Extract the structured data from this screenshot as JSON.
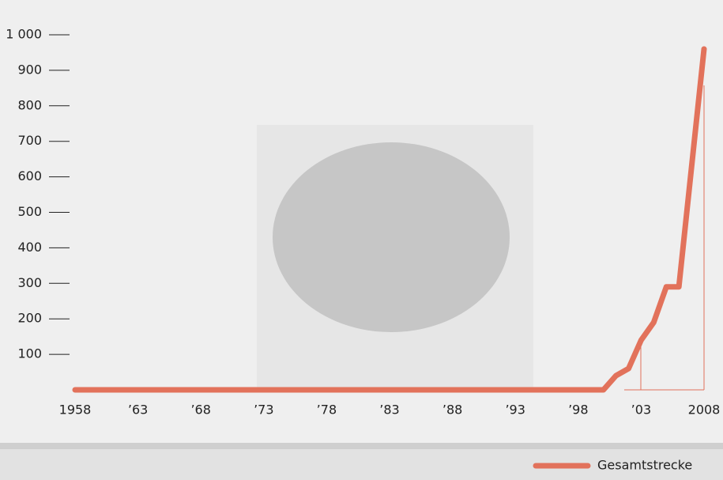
{
  "chart_data": {
    "type": "line",
    "x": [
      1958,
      2000,
      2001,
      2002,
      2003,
      2004,
      2005,
      2006,
      2008
    ],
    "series": [
      {
        "name": "Gesamtstrecke",
        "color": "#e2725b",
        "values": [
          0,
          0,
          40,
          60,
          140,
          190,
          290,
          290,
          960
        ]
      }
    ],
    "xlim": [
      1958,
      2008
    ],
    "xticks": [
      1958,
      {
        "value": 1963,
        "label": "’63"
      },
      {
        "value": 1968,
        "label": "’68"
      },
      {
        "value": 1973,
        "label": "’73"
      },
      {
        "value": 1978,
        "label": "’78"
      },
      {
        "value": 1983,
        "label": "’83"
      },
      {
        "value": 1988,
        "label": "’88"
      },
      {
        "value": 1993,
        "label": "’93"
      },
      {
        "value": 1998,
        "label": "’98"
      },
      {
        "value": 2003,
        "label": "’03"
      },
      2008
    ],
    "ylim": [
      0,
      1000
    ],
    "yticks": [
      100,
      200,
      300,
      400,
      500,
      600,
      700,
      800,
      900,
      {
        "value": 1000,
        "label": "1 000"
      }
    ],
    "legend": "bottom-right"
  }
}
